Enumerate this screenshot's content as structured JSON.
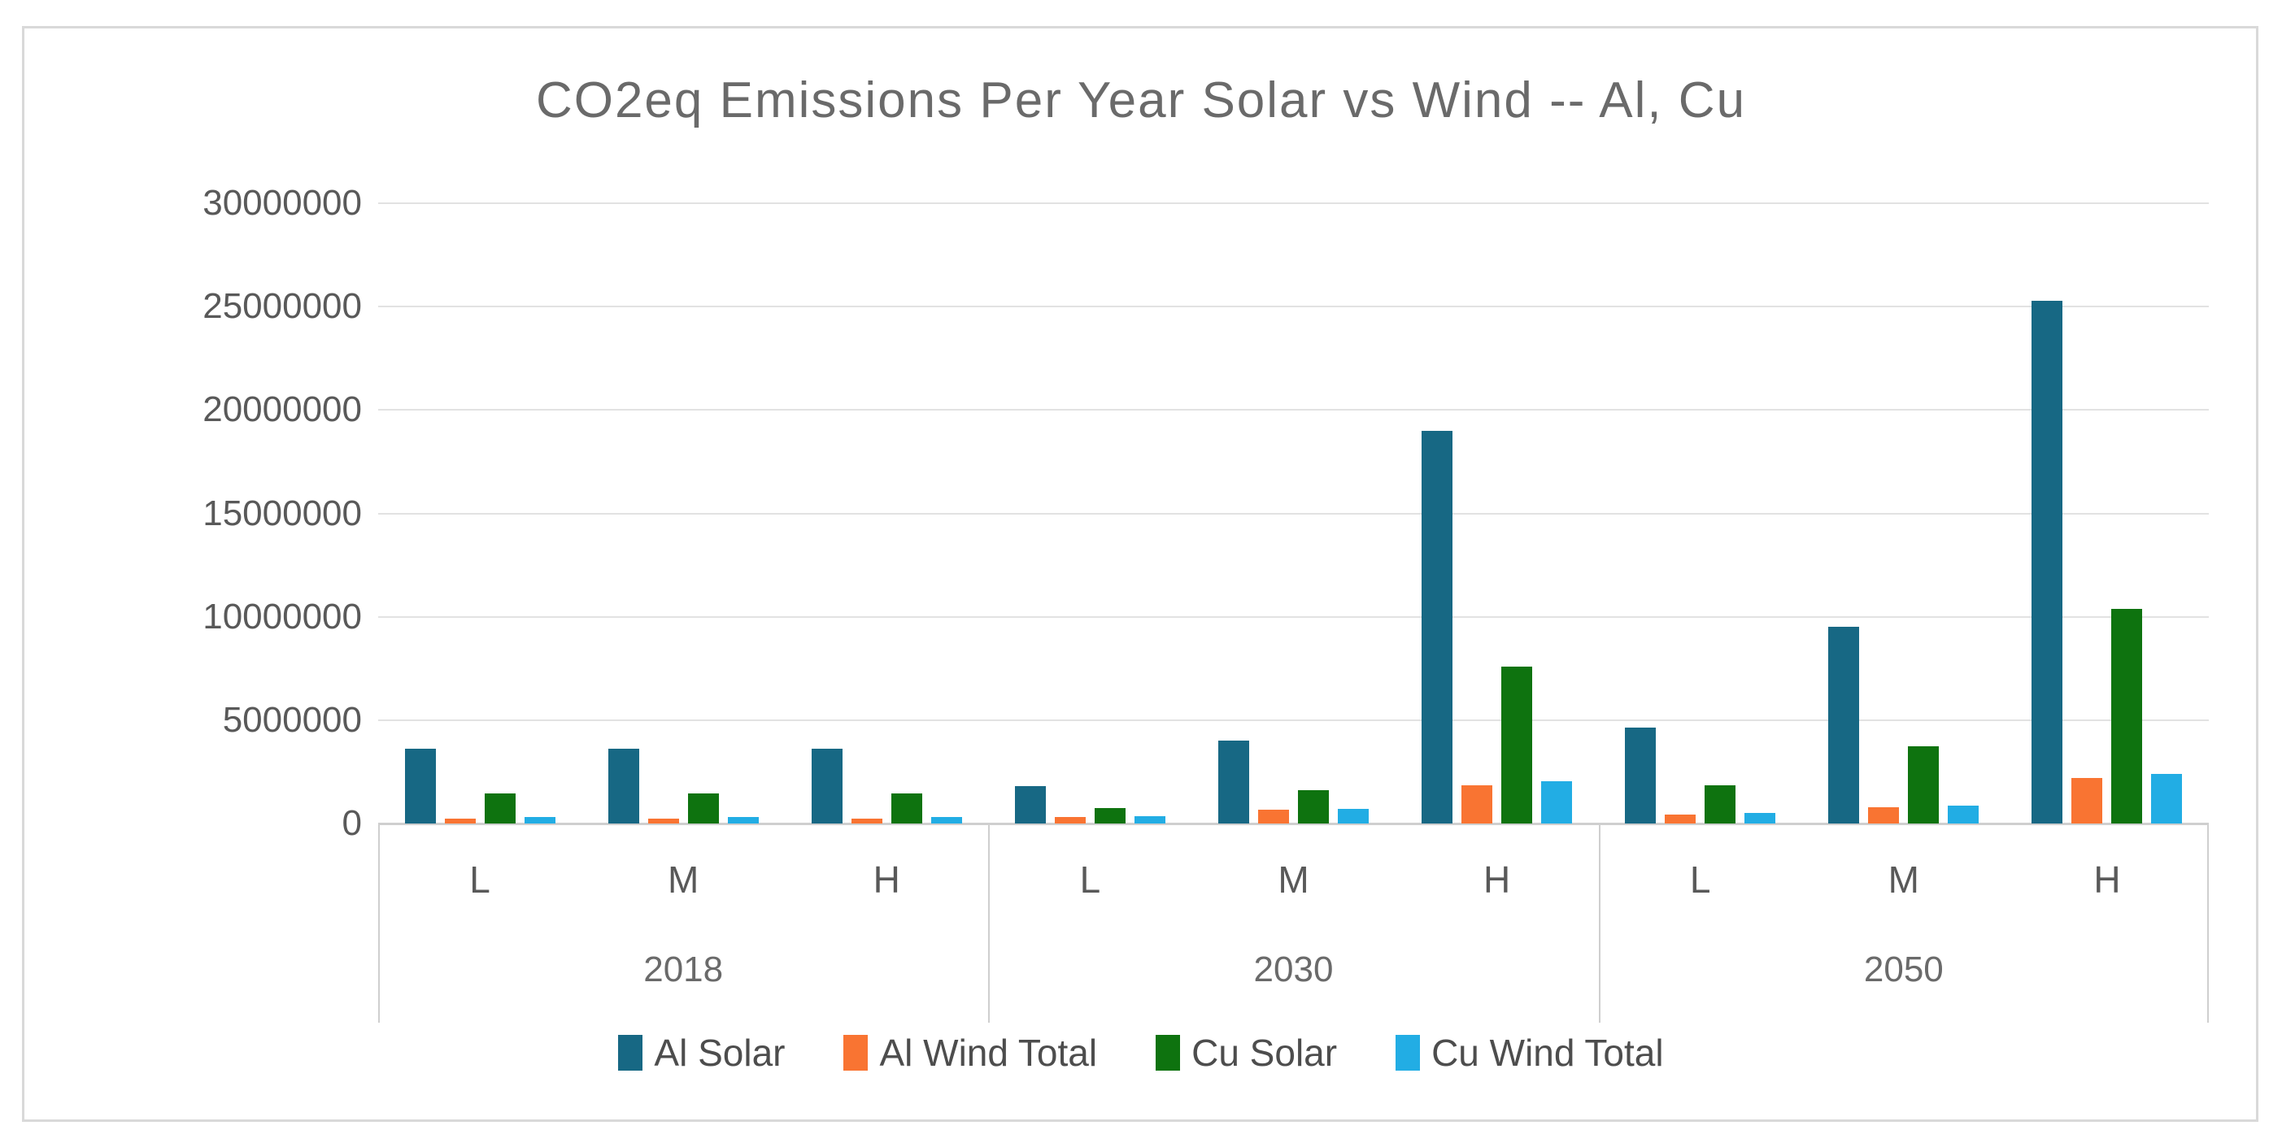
{
  "title": "CO2eq Emissions Per Year Solar vs Wind -- Al, Cu",
  "colors": {
    "al_solar": "#176884",
    "al_wind_total": "#f97432",
    "cu_solar": "#0e730f",
    "cu_wind_total": "#22ade4",
    "gridline": "#e2e2e2",
    "axis_line": "#cfcfcf",
    "axis_text": "#595959",
    "title_text": "#6a6a6a",
    "figure_border": "#d9d9d9"
  },
  "chart_data": {
    "type": "bar",
    "title": "CO2eq Emissions Per Year Solar vs Wind -- Al, Cu",
    "xlabel": "",
    "ylabel": "",
    "ylim": [
      0,
      30000000
    ],
    "y_tick_step": 5000000,
    "y_tick_labels": [
      "30000000",
      "25000000",
      "20000000",
      "15000000",
      "10000000",
      "5000000",
      "0"
    ],
    "grid": true,
    "legend_position": "bottom",
    "group_labels": [
      "2018",
      "2030",
      "2050"
    ],
    "subgroup_labels": [
      "L",
      "M",
      "H"
    ],
    "categories": [
      "2018-L",
      "2018-M",
      "2018-H",
      "2030-L",
      "2030-M",
      "2030-H",
      "2050-L",
      "2050-M",
      "2050-H"
    ],
    "series": [
      {
        "name": "Al Solar",
        "color": "#176884",
        "values": [
          3600000,
          3600000,
          3600000,
          1800000,
          4000000,
          19000000,
          4650000,
          9500000,
          25300000
        ]
      },
      {
        "name": "Al Wind Total",
        "color": "#f97432",
        "values": [
          250000,
          250000,
          250000,
          300000,
          650000,
          1850000,
          430000,
          780000,
          2200000
        ]
      },
      {
        "name": "Cu Solar",
        "color": "#0e730f",
        "values": [
          1450000,
          1450000,
          1450000,
          750000,
          1600000,
          7600000,
          1850000,
          3750000,
          10400000
        ]
      },
      {
        "name": "Cu Wind Total",
        "color": "#22ade4",
        "values": [
          300000,
          300000,
          300000,
          350000,
          700000,
          2050000,
          500000,
          860000,
          2400000
        ]
      }
    ]
  }
}
